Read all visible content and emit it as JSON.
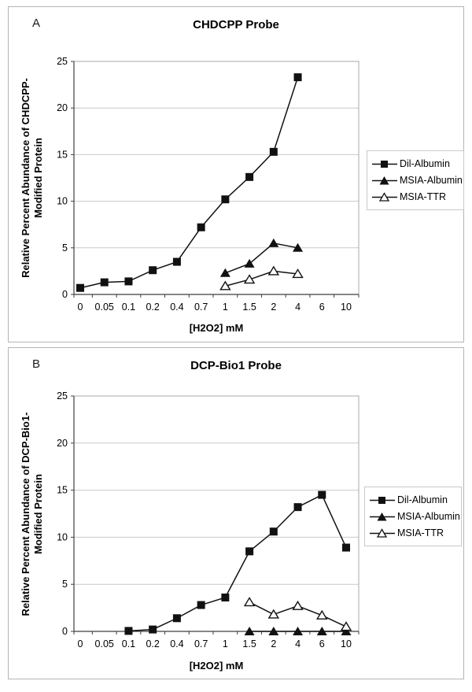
{
  "figure": {
    "panels": [
      {
        "label": "A",
        "title": "CHDCPP Probe",
        "y_axis_title_line1": "Relative Percent Abundance of CHDCPP-",
        "y_axis_title_line2": "Modified Protein",
        "x_axis_title": "[H2O2] mM"
      },
      {
        "label": "B",
        "title": "DCP-Bio1 Probe",
        "y_axis_title_line1": "Relative Percent Abundance of DCP-Bio1-",
        "y_axis_title_line2": "Modified Protein",
        "x_axis_title": "[H2O2] mM"
      }
    ]
  },
  "chart_data": [
    {
      "type": "line",
      "title": "CHDCPP Probe",
      "xlabel": "[H2O2] mM",
      "ylabel": "Relative Percent Abundance of CHDCPP-Modified Protein",
      "categories": [
        "0",
        "0.05",
        "0.1",
        "0.2",
        "0.4",
        "0.7",
        "1",
        "1.5",
        "2",
        "4",
        "6",
        "10"
      ],
      "ylim": [
        0,
        25
      ],
      "ytick_interval": 5,
      "grid": "horizontal",
      "legend_position": "right",
      "series": [
        {
          "name": "Dil-Albumin",
          "marker": "square-filled",
          "values": [
            0.7,
            1.3,
            1.4,
            2.6,
            3.5,
            7.2,
            10.2,
            12.6,
            15.3,
            23.3,
            null,
            null
          ]
        },
        {
          "name": "MSIA-Albumin",
          "marker": "triangle-filled",
          "values": [
            null,
            null,
            null,
            null,
            null,
            null,
            2.3,
            3.3,
            5.5,
            5.0,
            null,
            null
          ]
        },
        {
          "name": "MSIA-TTR",
          "marker": "triangle-open",
          "values": [
            null,
            null,
            null,
            null,
            null,
            null,
            0.9,
            1.6,
            2.5,
            2.2,
            null,
            null
          ]
        }
      ]
    },
    {
      "type": "line",
      "title": "DCP-Bio1 Probe",
      "xlabel": "[H2O2] mM",
      "ylabel": "Relative Percent Abundance of DCP-Bio1-Modified Protein",
      "categories": [
        "0",
        "0.05",
        "0.1",
        "0.2",
        "0.4",
        "0.7",
        "1",
        "1.5",
        "2",
        "4",
        "6",
        "10"
      ],
      "ylim": [
        0,
        25
      ],
      "ytick_interval": 5,
      "grid": "horizontal",
      "legend_position": "right",
      "series": [
        {
          "name": "Dil-Albumin",
          "marker": "square-filled",
          "values": [
            null,
            null,
            0.05,
            0.2,
            1.4,
            2.8,
            3.6,
            8.5,
            10.6,
            13.2,
            14.5,
            8.9
          ]
        },
        {
          "name": "MSIA-Albumin",
          "marker": "triangle-filled",
          "values": [
            null,
            null,
            null,
            null,
            null,
            null,
            null,
            0,
            0,
            0,
            0,
            0
          ]
        },
        {
          "name": "MSIA-TTR",
          "marker": "triangle-open",
          "values": [
            null,
            null,
            null,
            null,
            null,
            null,
            null,
            3.1,
            1.8,
            2.7,
            1.7,
            0.5
          ]
        }
      ]
    }
  ],
  "colors": {
    "series": "#111111",
    "grid": "#c9c9c9",
    "axis": "#3f3f3f",
    "plot_border": "#a8a8a8",
    "panel_border": "#b5b5b5",
    "text": "#000000",
    "background": "#ffffff"
  }
}
